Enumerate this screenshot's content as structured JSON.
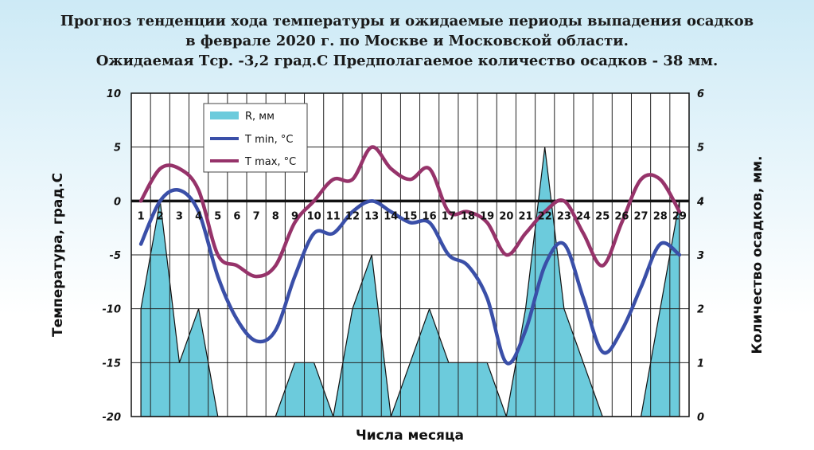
{
  "title": {
    "line1": "Прогноз тенденции хода температуры и ожидаемые периоды выпадения осадков",
    "line2": "в феврале 2020 г. по Москве и Московской области.",
    "line3": "Ожидаемая Тср. -3,2 град.С Предполагаемое количество осадков - 38 мм."
  },
  "chart_data": {
    "type": "line",
    "xlabel": "Числа месяца",
    "ylabel": "Температура, град.С",
    "y2label": "Количество осадков, мм.",
    "ylim": [
      -20,
      10
    ],
    "y2lim": [
      0,
      6
    ],
    "yticks": [
      "10",
      "5",
      "0",
      "-5",
      "-10",
      "-15",
      "-20"
    ],
    "y2ticks": [
      "6",
      "5",
      "4",
      "3",
      "2",
      "1",
      "0"
    ],
    "grid": true,
    "legend_position": "top-left",
    "x": [
      "1",
      "2",
      "3",
      "4",
      "5",
      "6",
      "7",
      "8",
      "9",
      "10",
      "11",
      "12",
      "13",
      "14",
      "15",
      "16",
      "17",
      "18",
      "19",
      "20",
      "21",
      "22",
      "23",
      "24",
      "25",
      "26",
      "27",
      "28",
      "29"
    ],
    "series": [
      {
        "name": "R, мм",
        "kind": "area",
        "axis": "right",
        "color": "#6ccbdc",
        "values": [
          2,
          4,
          1,
          2,
          0,
          0,
          0,
          0,
          1,
          1,
          0,
          2,
          3,
          0,
          1,
          2,
          1,
          1,
          1,
          0,
          2,
          5,
          2,
          1,
          0,
          0,
          0,
          2,
          4
        ]
      },
      {
        "name": "T min, °C",
        "kind": "line",
        "axis": "left",
        "color": "#3a4fa8",
        "values": [
          -4,
          0,
          1,
          -1,
          -7,
          -11,
          -13,
          -12,
          -7,
          -3,
          -3,
          -1,
          0,
          -1,
          -2,
          -2,
          -5,
          -6,
          -9,
          -15,
          -12,
          -6,
          -4,
          -9,
          -14,
          -12,
          -8,
          -4,
          -5
        ]
      },
      {
        "name": "T max, °C",
        "kind": "line",
        "axis": "left",
        "color": "#96336a",
        "values": [
          0,
          3,
          3,
          1,
          -5,
          -6,
          -7,
          -6,
          -2,
          0,
          2,
          2,
          5,
          3,
          2,
          3,
          -1,
          -1,
          -2,
          -5,
          -3,
          -1,
          0,
          -3,
          -6,
          -2,
          2,
          2,
          -1
        ]
      }
    ]
  }
}
